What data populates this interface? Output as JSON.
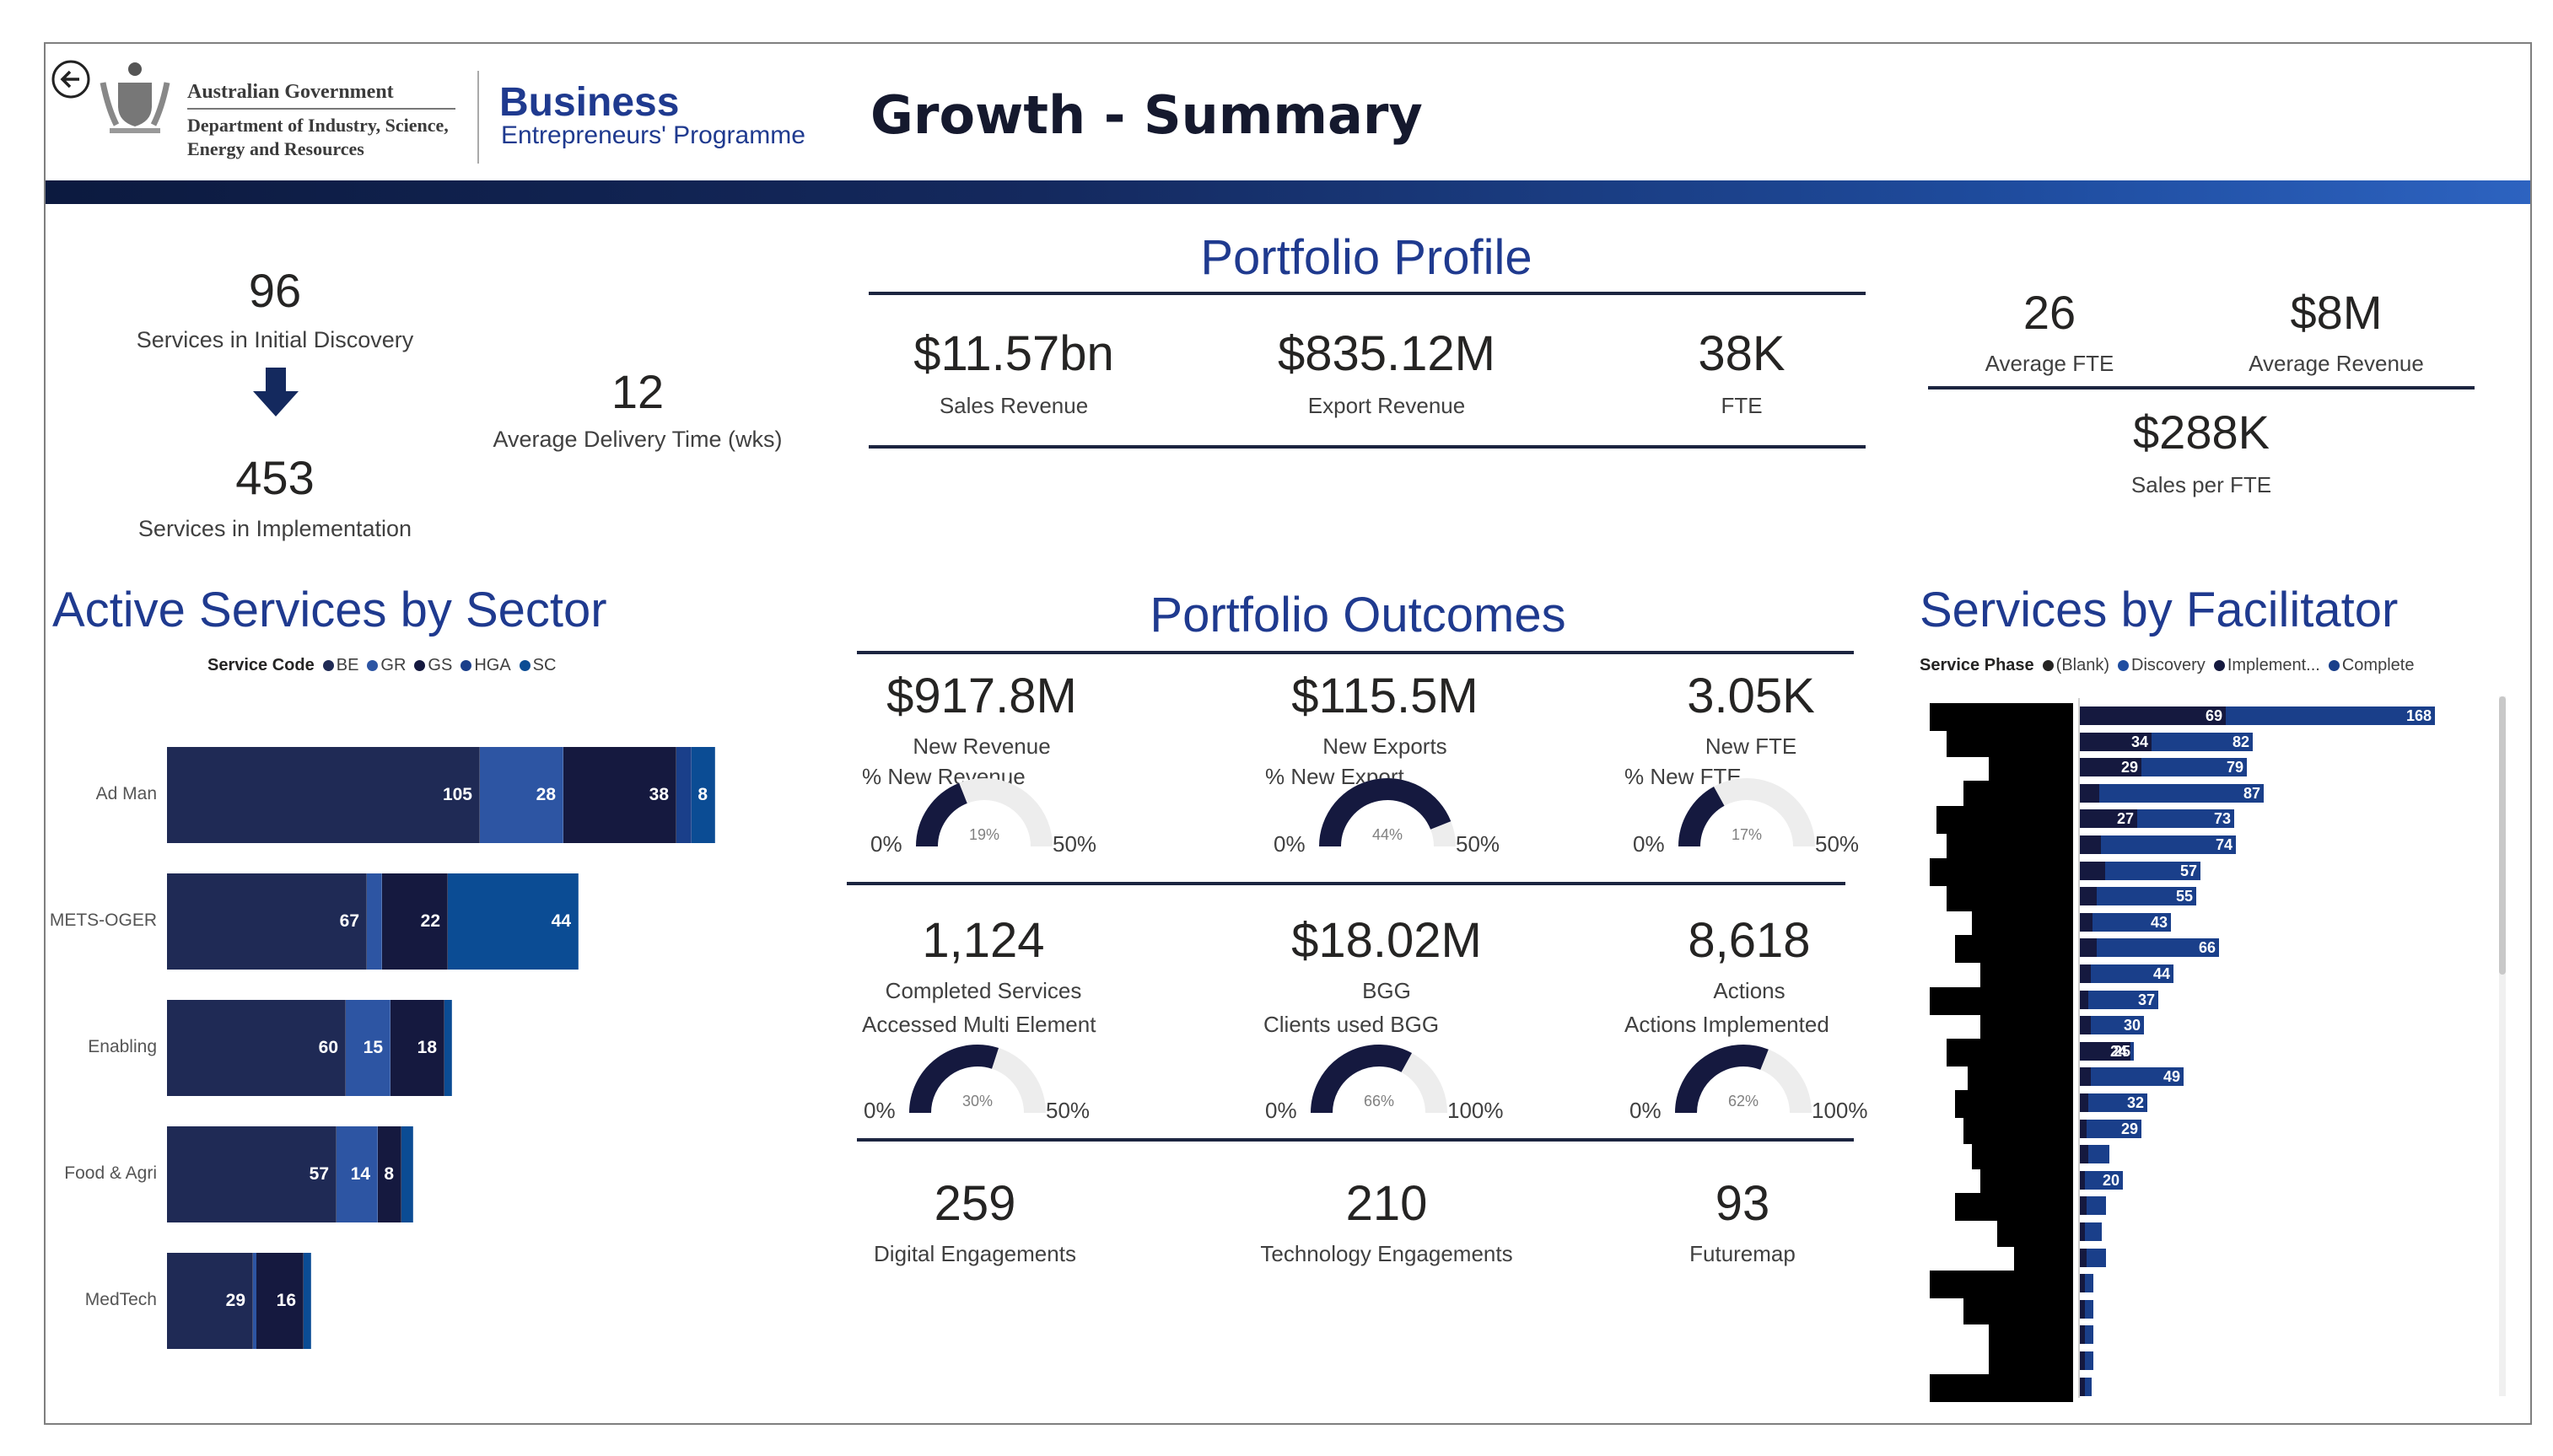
{
  "header": {
    "gov_line1": "Australian Government",
    "gov_line2": "Department of Industry, Science,",
    "gov_line3": "Energy and Resources",
    "brand_line1": "Business",
    "brand_line2": "Entrepreneurs' Programme",
    "title": "Growth - Summary",
    "back_icon": "back-arrow-icon",
    "crest_icon": "coat-of-arms-icon"
  },
  "services": {
    "discovery_value": "96",
    "discovery_label": "Services in Initial Discovery",
    "implementation_value": "453",
    "implementation_label": "Services in Implementation",
    "delivery_value": "12",
    "delivery_label": "Average Delivery Time (wks)",
    "arrow_icon": "arrow-down-icon"
  },
  "portfolio_profile": {
    "title": "Portfolio Profile",
    "items": [
      {
        "value": "$11.57bn",
        "label": "Sales Revenue"
      },
      {
        "value": "$835.12M",
        "label": "Export Revenue"
      },
      {
        "value": "38K",
        "label": "FTE"
      }
    ]
  },
  "averages": {
    "fte_value": "26",
    "fte_label": "Average FTE",
    "revenue_value": "$8M",
    "revenue_label": "Average Revenue",
    "sales_value": "$288K",
    "sales_label": "Sales per FTE"
  },
  "sector_chart": {
    "title": "Active Services by Sector",
    "legend_title": "Service Code",
    "legend": [
      {
        "code": "BE",
        "color": "#1f2a55"
      },
      {
        "code": "GR",
        "color": "#2d55a3"
      },
      {
        "code": "GS",
        "color": "#15193f"
      },
      {
        "code": "HGA",
        "color": "#1a3f8a"
      },
      {
        "code": "SC",
        "color": "#0b4c94"
      }
    ]
  },
  "chart_data": {
    "type": "bar",
    "orientation": "horizontal",
    "stacked": true,
    "categories": [
      "Ad Man",
      "METS-OGER",
      "Enabling",
      "Food & Agri",
      "MedTech"
    ],
    "series_codes": [
      "BE",
      "GR",
      "GS",
      "HGA",
      "SC"
    ],
    "rows": [
      {
        "category": "Ad Man",
        "segments": [
          {
            "code": "BE",
            "value": 105,
            "label": "105"
          },
          {
            "code": "GR",
            "value": 28,
            "label": "28"
          },
          {
            "code": "GS",
            "value": 38,
            "label": "38"
          },
          {
            "code": "HGA",
            "value": 5,
            "label": ""
          },
          {
            "code": "SC",
            "value": 8,
            "label": "8"
          }
        ]
      },
      {
        "category": "METS-OGER",
        "segments": [
          {
            "code": "BE",
            "value": 67,
            "label": "67"
          },
          {
            "code": "GR",
            "value": 5,
            "label": ""
          },
          {
            "code": "GS",
            "value": 22,
            "label": "22"
          },
          {
            "code": "SC",
            "value": 44,
            "label": "44"
          }
        ]
      },
      {
        "category": "Enabling",
        "segments": [
          {
            "code": "BE",
            "value": 60,
            "label": "60"
          },
          {
            "code": "GR",
            "value": 15,
            "label": "15"
          },
          {
            "code": "GS",
            "value": 18,
            "label": "18"
          },
          {
            "code": "SC",
            "value": 1,
            "label": ""
          }
        ]
      },
      {
        "category": "Food & Agri",
        "segments": [
          {
            "code": "BE",
            "value": 57,
            "label": "57"
          },
          {
            "code": "GR",
            "value": 14,
            "label": "14"
          },
          {
            "code": "GS",
            "value": 8,
            "label": "8"
          },
          {
            "code": "SC",
            "value": 4,
            "label": ""
          }
        ]
      },
      {
        "category": "MedTech",
        "segments": [
          {
            "code": "BE",
            "value": 29,
            "label": "29"
          },
          {
            "code": "GR",
            "value": 1,
            "label": ""
          },
          {
            "code": "GS",
            "value": 16,
            "label": "16"
          },
          {
            "code": "SC",
            "value": 2,
            "label": ""
          }
        ]
      }
    ]
  },
  "portfolio_outcomes": {
    "title": "Portfolio Outcomes",
    "row1": [
      {
        "value": "$917.8M",
        "label": "New Revenue",
        "gauge_title": "% New Revenue",
        "min": "0%",
        "max": "50%",
        "center": "19%",
        "fraction": 0.38
      },
      {
        "value": "$115.5M",
        "label": "New Exports",
        "gauge_title": "% New Export",
        "min": "0%",
        "max": "50%",
        "center": "44%",
        "fraction": 0.88
      },
      {
        "value": "3.05K",
        "label": "New FTE",
        "gauge_title": "% New FTE",
        "min": "0%",
        "max": "50%",
        "center": "17%",
        "fraction": 0.34
      }
    ],
    "row2": [
      {
        "value": "1,124",
        "label": "Completed Services",
        "gauge_title": "Accessed Multi Element",
        "min": "0%",
        "max": "50%",
        "center": "30%",
        "fraction": 0.6
      },
      {
        "value": "$18.02M",
        "label": "BGG",
        "gauge_title": "Clients used BGG",
        "min": "0%",
        "max": "100%",
        "center": "66%",
        "fraction": 0.66
      },
      {
        "value": "8,618",
        "label": "Actions",
        "gauge_title": "Actions Implemented",
        "min": "0%",
        "max": "100%",
        "center": "62%",
        "fraction": 0.62
      }
    ],
    "row3": [
      {
        "value": "259",
        "label": "Digital Engagements"
      },
      {
        "value": "210",
        "label": "Technology Engagements"
      },
      {
        "value": "93",
        "label": "Futuremap"
      }
    ]
  },
  "facilitator_chart": {
    "title": "Services by Facilitator",
    "legend_title": "Service Phase",
    "legend": [
      {
        "name": "(Blank)",
        "color": "#252423"
      },
      {
        "name": "Discovery",
        "color": "#1f4da0"
      },
      {
        "name": "Implement...",
        "color": "#15193f"
      },
      {
        "name": "Complete",
        "color": "#1a3f8a"
      }
    ],
    "rows": [
      {
        "impl": 69,
        "comp": 168,
        "impl_label": "69",
        "comp_label": "168"
      },
      {
        "impl": 34,
        "comp": 82,
        "impl_label": "34",
        "comp_label": "82"
      },
      {
        "impl": 29,
        "comp": 79,
        "impl_label": "29",
        "comp_label": "79"
      },
      {
        "impl": 9,
        "comp": 87,
        "impl_label": "",
        "comp_label": "87"
      },
      {
        "impl": 27,
        "comp": 73,
        "impl_label": "27",
        "comp_label": "73"
      },
      {
        "impl": 10,
        "comp": 74,
        "impl_label": "",
        "comp_label": "74"
      },
      {
        "impl": 12,
        "comp": 57,
        "impl_label": "",
        "comp_label": "57"
      },
      {
        "impl": 8,
        "comp": 55,
        "impl_label": "",
        "comp_label": "55"
      },
      {
        "impl": 6,
        "comp": 43,
        "impl_label": "",
        "comp_label": "43"
      },
      {
        "impl": 8,
        "comp": 66,
        "impl_label": "",
        "comp_label": "66"
      },
      {
        "impl": 5,
        "comp": 44,
        "impl_label": "",
        "comp_label": "44"
      },
      {
        "impl": 4,
        "comp": 37,
        "impl_label": "",
        "comp_label": "37"
      },
      {
        "impl": 5,
        "comp": 30,
        "impl_label": "",
        "comp_label": "30"
      },
      {
        "impl": 24,
        "comp": 25,
        "impl_label": "24",
        "comp_label": "25"
      },
      {
        "impl": 5,
        "comp": 49,
        "impl_label": "",
        "comp_label": "49"
      },
      {
        "impl": 4,
        "comp": 32,
        "impl_label": "",
        "comp_label": "32"
      },
      {
        "impl": 3,
        "comp": 29,
        "impl_label": "",
        "comp_label": "29"
      },
      {
        "impl": 4,
        "comp": 14,
        "impl_label": "",
        "comp_label": ""
      },
      {
        "impl": 2,
        "comp": 20,
        "impl_label": "",
        "comp_label": "20"
      },
      {
        "impl": 3,
        "comp": 12,
        "impl_label": "",
        "comp_label": ""
      },
      {
        "impl": 2,
        "comp": 10,
        "impl_label": "",
        "comp_label": ""
      },
      {
        "impl": 3,
        "comp": 12,
        "impl_label": "",
        "comp_label": ""
      },
      {
        "impl": 1,
        "comp": 5,
        "impl_label": "",
        "comp_label": ""
      },
      {
        "impl": 1,
        "comp": 5,
        "impl_label": "",
        "comp_label": ""
      },
      {
        "impl": 1,
        "comp": 5,
        "impl_label": "",
        "comp_label": ""
      },
      {
        "impl": 1,
        "comp": 5,
        "impl_label": "",
        "comp_label": ""
      },
      {
        "impl": 1,
        "comp": 4,
        "impl_label": "",
        "comp_label": ""
      }
    ]
  }
}
